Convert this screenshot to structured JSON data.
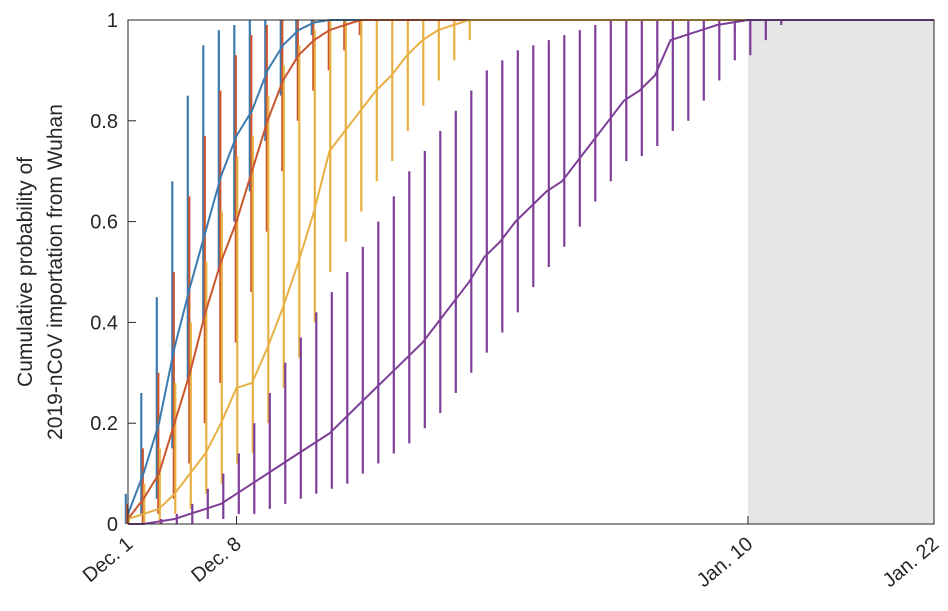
{
  "chart_data": {
    "type": "line",
    "title": "",
    "xlabel": "",
    "ylabel_lines": [
      "Cumulative probability of",
      "2019-nCoV importation from Wuhan"
    ],
    "ylim": [
      0,
      1
    ],
    "xlim": [
      0,
      52
    ],
    "x_unit": "days since Dec. 1",
    "yticks": [
      {
        "v": 0,
        "label": "0"
      },
      {
        "v": 0.2,
        "label": "0.2"
      },
      {
        "v": 0.4,
        "label": "0.4"
      },
      {
        "v": 0.6,
        "label": "0.6"
      },
      {
        "v": 0.8,
        "label": "0.8"
      },
      {
        "v": 1,
        "label": "1"
      }
    ],
    "xticks": [
      {
        "v": 0,
        "label": "Dec. 1"
      },
      {
        "v": 7,
        "label": "Dec. 8"
      },
      {
        "v": 40,
        "label": "Jan. 10"
      },
      {
        "v": 52,
        "label": "Jan. 22"
      }
    ],
    "shaded_region": {
      "x": [
        40,
        52
      ],
      "color": "#e6e6e6"
    },
    "series": [
      {
        "color": "#3b7bb0",
        "x": [
          0,
          1,
          2,
          3,
          4,
          5,
          6,
          7,
          8,
          9,
          10,
          11,
          12,
          13,
          14,
          15,
          16,
          17,
          18,
          19,
          20,
          21,
          22,
          23,
          24,
          25,
          26,
          27,
          28,
          29,
          30,
          31,
          32,
          33,
          34,
          35,
          36,
          37,
          38,
          39,
          40,
          41,
          42,
          43,
          44,
          45,
          46,
          47,
          48,
          49,
          50,
          51,
          52
        ],
        "y": [
          0.02,
          0.1,
          0.2,
          0.35,
          0.47,
          0.58,
          0.69,
          0.77,
          0.82,
          0.9,
          0.95,
          0.98,
          0.995,
          1,
          1,
          1,
          1,
          1,
          1,
          1,
          1,
          1,
          1,
          1,
          1,
          1,
          1,
          1,
          1,
          1,
          1,
          1,
          1,
          1,
          1,
          1,
          1,
          1,
          1,
          1,
          1,
          1,
          1,
          1,
          1,
          1,
          1,
          1,
          1,
          1,
          1,
          1,
          1
        ],
        "lo": [
          0,
          0.02,
          0.05,
          0.15,
          0.28,
          0.4,
          0.5,
          0.6,
          0.66,
          0.76,
          0.85,
          0.92,
          0.97,
          1,
          1,
          1,
          1,
          1,
          1,
          1,
          1,
          1,
          1,
          1,
          1,
          1,
          1,
          1,
          1,
          1,
          1,
          1,
          1,
          1,
          1,
          1,
          1,
          1,
          1,
          1,
          1,
          1,
          1,
          1,
          1,
          1,
          1,
          1,
          1,
          1,
          1,
          1,
          1
        ],
        "hi": [
          0.06,
          0.26,
          0.45,
          0.68,
          0.85,
          0.95,
          0.98,
          0.99,
          1,
          1,
          1,
          1,
          1,
          1,
          1,
          1,
          1,
          1,
          1,
          1,
          1,
          1,
          1,
          1,
          1,
          1,
          1,
          1,
          1,
          1,
          1,
          1,
          1,
          1,
          1,
          1,
          1,
          1,
          1,
          1,
          1,
          1,
          1,
          1,
          1,
          1,
          1,
          1,
          1,
          1,
          1,
          1,
          1
        ]
      },
      {
        "color": "#c9562e",
        "x": [
          0,
          1,
          2,
          3,
          4,
          5,
          6,
          7,
          8,
          9,
          10,
          11,
          12,
          13,
          14,
          15,
          16,
          17,
          18,
          19,
          20,
          21,
          22,
          23,
          24,
          25,
          26,
          27,
          28,
          29,
          30,
          31,
          32,
          33,
          34,
          35,
          36,
          37,
          38,
          39,
          40,
          41,
          42,
          43,
          44,
          45,
          46,
          47,
          48,
          49,
          50,
          51,
          52
        ],
        "y": [
          0.01,
          0.05,
          0.1,
          0.2,
          0.3,
          0.42,
          0.52,
          0.6,
          0.7,
          0.8,
          0.88,
          0.93,
          0.96,
          0.98,
          0.99,
          1,
          1,
          1,
          1,
          1,
          1,
          1,
          1,
          1,
          1,
          1,
          1,
          1,
          1,
          1,
          1,
          1,
          1,
          1,
          1,
          1,
          1,
          1,
          1,
          1,
          1,
          1,
          1,
          1,
          1,
          1,
          1,
          1,
          1,
          1,
          1,
          1,
          1
        ],
        "lo": [
          0,
          0,
          0.02,
          0.05,
          0.12,
          0.2,
          0.28,
          0.36,
          0.46,
          0.58,
          0.7,
          0.8,
          0.86,
          0.9,
          0.94,
          0.97,
          1,
          1,
          1,
          1,
          1,
          1,
          1,
          1,
          1,
          1,
          1,
          1,
          1,
          1,
          1,
          1,
          1,
          1,
          1,
          1,
          1,
          1,
          1,
          1,
          1,
          1,
          1,
          1,
          1,
          1,
          1,
          1,
          1,
          1,
          1,
          1,
          1
        ],
        "hi": [
          0.04,
          0.15,
          0.3,
          0.5,
          0.65,
          0.77,
          0.86,
          0.93,
          0.97,
          0.99,
          1,
          1,
          1,
          1,
          1,
          1,
          1,
          1,
          1,
          1,
          1,
          1,
          1,
          1,
          1,
          1,
          1,
          1,
          1,
          1,
          1,
          1,
          1,
          1,
          1,
          1,
          1,
          1,
          1,
          1,
          1,
          1,
          1,
          1,
          1,
          1,
          1,
          1,
          1,
          1,
          1,
          1,
          1
        ]
      },
      {
        "color": "#e8b043",
        "x": [
          0,
          1,
          2,
          3,
          4,
          5,
          6,
          7,
          8,
          9,
          10,
          11,
          12,
          13,
          14,
          15,
          16,
          17,
          18,
          19,
          20,
          21,
          22,
          23,
          24,
          25,
          26,
          27,
          28,
          29,
          30,
          31,
          32,
          33,
          34,
          35,
          36,
          37,
          38,
          39,
          40,
          41,
          42,
          43,
          44,
          45,
          46,
          47,
          48,
          49,
          50,
          51,
          52
        ],
        "y": [
          0.01,
          0.02,
          0.03,
          0.06,
          0.1,
          0.14,
          0.2,
          0.27,
          0.28,
          0.35,
          0.43,
          0.52,
          0.62,
          0.74,
          0.78,
          0.82,
          0.86,
          0.89,
          0.93,
          0.96,
          0.98,
          0.99,
          1,
          1,
          1,
          1,
          1,
          1,
          1,
          1,
          1,
          1,
          1,
          1,
          1,
          1,
          1,
          1,
          1,
          1,
          1,
          1,
          1,
          1,
          1,
          1,
          1,
          1,
          1,
          1,
          1,
          1,
          1
        ],
        "lo": [
          0,
          0,
          0,
          0.02,
          0.03,
          0.06,
          0.08,
          0.12,
          0.14,
          0.2,
          0.27,
          0.33,
          0.4,
          0.5,
          0.56,
          0.62,
          0.68,
          0.72,
          0.78,
          0.83,
          0.88,
          0.92,
          0.96,
          1,
          1,
          1,
          1,
          1,
          1,
          1,
          1,
          1,
          1,
          1,
          1,
          1,
          1,
          1,
          1,
          1,
          1,
          1,
          1,
          1,
          1,
          1,
          1,
          1,
          1,
          1,
          1,
          1,
          1
        ],
        "hi": [
          0.03,
          0.08,
          0.15,
          0.28,
          0.4,
          0.52,
          0.62,
          0.73,
          0.77,
          0.85,
          0.91,
          0.95,
          0.98,
          1,
          1,
          1,
          1,
          1,
          1,
          1,
          1,
          1,
          1,
          1,
          1,
          1,
          1,
          1,
          1,
          1,
          1,
          1,
          1,
          1,
          1,
          1,
          1,
          1,
          1,
          1,
          1,
          1,
          1,
          1,
          1,
          1,
          1,
          1,
          1,
          1,
          1,
          1,
          1
        ]
      },
      {
        "color": "#7e3e98",
        "x": [
          0,
          1,
          2,
          3,
          4,
          5,
          6,
          7,
          8,
          9,
          10,
          11,
          12,
          13,
          14,
          15,
          16,
          17,
          18,
          19,
          20,
          21,
          22,
          23,
          24,
          25,
          26,
          27,
          28,
          29,
          30,
          31,
          32,
          33,
          34,
          35,
          36,
          37,
          38,
          39,
          40,
          41,
          42,
          43,
          44,
          45,
          46,
          47,
          48,
          49,
          50,
          51,
          52
        ],
        "y": [
          0,
          0,
          0.005,
          0.01,
          0.02,
          0.03,
          0.04,
          0.06,
          0.08,
          0.1,
          0.12,
          0.14,
          0.16,
          0.18,
          0.21,
          0.24,
          0.27,
          0.3,
          0.33,
          0.36,
          0.4,
          0.44,
          0.48,
          0.53,
          0.56,
          0.6,
          0.63,
          0.66,
          0.68,
          0.72,
          0.76,
          0.8,
          0.84,
          0.86,
          0.89,
          0.96,
          0.97,
          0.98,
          0.99,
          0.995,
          1,
          1,
          1,
          1,
          1,
          1,
          1,
          1,
          1,
          1,
          1,
          1,
          1
        ],
        "lo": [
          0,
          0,
          0,
          0,
          0,
          0.01,
          0.01,
          0.02,
          0.02,
          0.03,
          0.04,
          0.05,
          0.06,
          0.07,
          0.08,
          0.1,
          0.12,
          0.14,
          0.16,
          0.19,
          0.22,
          0.26,
          0.3,
          0.34,
          0.38,
          0.42,
          0.47,
          0.51,
          0.55,
          0.59,
          0.64,
          0.68,
          0.72,
          0.73,
          0.75,
          0.78,
          0.8,
          0.84,
          0.88,
          0.92,
          0.93,
          0.96,
          0.99,
          1,
          1,
          1,
          1,
          1,
          1,
          1,
          1,
          1,
          1
        ],
        "hi": [
          0,
          0,
          0.01,
          0.02,
          0.04,
          0.07,
          0.1,
          0.14,
          0.2,
          0.26,
          0.32,
          0.37,
          0.42,
          0.46,
          0.5,
          0.55,
          0.6,
          0.65,
          0.7,
          0.74,
          0.78,
          0.82,
          0.86,
          0.9,
          0.92,
          0.94,
          0.95,
          0.96,
          0.97,
          0.98,
          0.99,
          1,
          1,
          1,
          1,
          1,
          1,
          1,
          1,
          1,
          1,
          1,
          1,
          1,
          1,
          1,
          1,
          1,
          1,
          1,
          1,
          1,
          1
        ]
      }
    ]
  }
}
